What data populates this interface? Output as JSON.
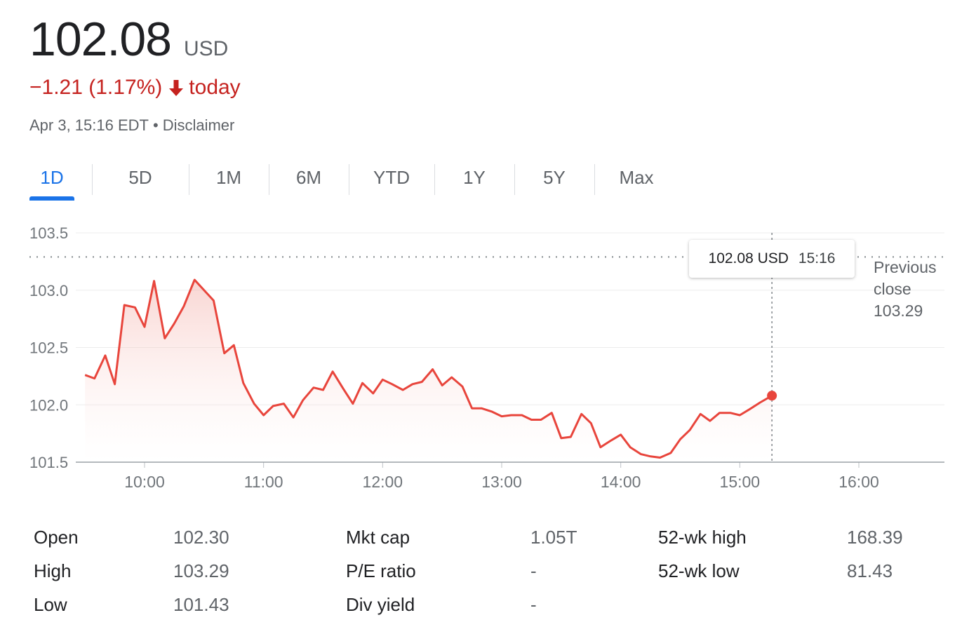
{
  "header": {
    "price": "102.08",
    "currency": "USD",
    "change": "−1.21 (1.17%)",
    "change_period": "today",
    "timestamp": "Apr 3, 15:16 EDT",
    "separator": "•",
    "disclaimer": "Disclaimer"
  },
  "colors": {
    "down": "#c5221f",
    "line": "#e8453c",
    "active_tab": "#1a73e8"
  },
  "tabs": [
    {
      "label": "1D",
      "active": true
    },
    {
      "label": "5D",
      "active": false
    },
    {
      "label": "1M",
      "active": false
    },
    {
      "label": "6M",
      "active": false
    },
    {
      "label": "YTD",
      "active": false
    },
    {
      "label": "1Y",
      "active": false
    },
    {
      "label": "5Y",
      "active": false
    },
    {
      "label": "Max",
      "active": false
    }
  ],
  "tooltip": {
    "price": "102.08 USD",
    "time": "15:16"
  },
  "previous_close": {
    "label_line1": "Previous",
    "label_line2": "close",
    "value": "103.29"
  },
  "chart_data": {
    "type": "line",
    "x_unit": "time of day (hours)",
    "x": [
      9.5,
      9.58,
      9.67,
      9.75,
      9.83,
      9.92,
      10.0,
      10.08,
      10.17,
      10.25,
      10.33,
      10.42,
      10.5,
      10.58,
      10.67,
      10.75,
      10.83,
      10.92,
      11.0,
      11.08,
      11.17,
      11.25,
      11.33,
      11.42,
      11.5,
      11.58,
      11.67,
      11.75,
      11.83,
      11.92,
      12.0,
      12.08,
      12.17,
      12.25,
      12.33,
      12.42,
      12.5,
      12.58,
      12.67,
      12.75,
      12.83,
      12.92,
      13.0,
      13.08,
      13.17,
      13.25,
      13.33,
      13.42,
      13.5,
      13.58,
      13.67,
      13.75,
      13.83,
      13.92,
      14.0,
      14.08,
      14.17,
      14.25,
      14.33,
      14.42,
      14.5,
      14.58,
      14.67,
      14.75,
      14.83,
      14.92,
      15.0,
      15.08,
      15.17,
      15.27
    ],
    "values": [
      102.26,
      102.23,
      102.43,
      102.18,
      102.87,
      102.85,
      102.68,
      103.08,
      102.58,
      102.71,
      102.86,
      103.09,
      103.0,
      102.91,
      102.45,
      102.52,
      102.19,
      102.01,
      101.91,
      101.99,
      102.01,
      101.89,
      102.04,
      102.15,
      102.13,
      102.29,
      102.14,
      102.01,
      102.19,
      102.1,
      102.22,
      102.18,
      102.13,
      102.18,
      102.2,
      102.31,
      102.17,
      102.24,
      102.16,
      101.97,
      101.97,
      101.94,
      101.9,
      101.91,
      101.91,
      101.87,
      101.87,
      101.93,
      101.71,
      101.72,
      101.92,
      101.84,
      101.63,
      101.69,
      101.74,
      101.63,
      101.57,
      101.55,
      101.54,
      101.58,
      101.7,
      101.78,
      101.92,
      101.86,
      101.93,
      101.93,
      101.91,
      101.96,
      102.02,
      102.08
    ],
    "previous_close": 103.29,
    "last_point": {
      "x": 15.27,
      "y": 102.08
    },
    "xlim": [
      9.5,
      16.75
    ],
    "ylim": [
      101.5,
      103.5
    ],
    "y_ticks": [
      "101.5",
      "102.0",
      "102.5",
      "103.0",
      "103.5"
    ],
    "x_ticks": [
      {
        "value": 10,
        "label": "10:00"
      },
      {
        "value": 11,
        "label": "11:00"
      },
      {
        "value": 12,
        "label": "12:00"
      },
      {
        "value": 13,
        "label": "13:00"
      },
      {
        "value": 14,
        "label": "14:00"
      },
      {
        "value": 15,
        "label": "15:00"
      },
      {
        "value": 16,
        "label": "16:00"
      }
    ],
    "grid": true,
    "legend": "none"
  },
  "stats": {
    "col1": [
      {
        "label": "Open",
        "value": "102.30"
      },
      {
        "label": "High",
        "value": "103.29"
      },
      {
        "label": "Low",
        "value": "101.43"
      }
    ],
    "col2": [
      {
        "label": "Mkt cap",
        "value": "1.05T"
      },
      {
        "label": "P/E ratio",
        "value": "-"
      },
      {
        "label": "Div yield",
        "value": "-"
      }
    ],
    "col3": [
      {
        "label": "52-wk high",
        "value": "168.39"
      },
      {
        "label": "52-wk low",
        "value": "81.43"
      }
    ]
  }
}
